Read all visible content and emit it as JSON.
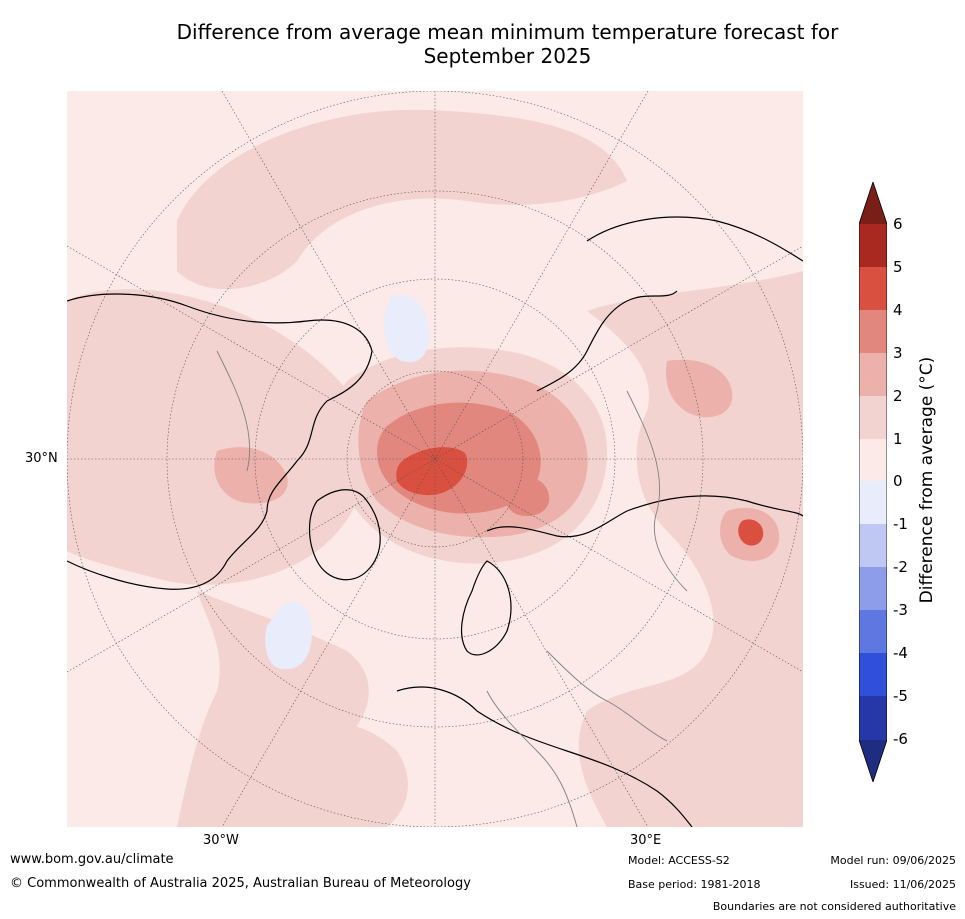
{
  "title": {
    "line1": "Difference from average mean minimum temperature forecast for",
    "line2": "September 2025"
  },
  "map": {
    "projection": "north-polar-stereographic",
    "lat_labels": [
      "30°N"
    ],
    "lon_labels": [
      "30°W",
      "30°E"
    ],
    "colors": {
      "plus_0_1": "#fbeae7",
      "plus_1_2": "#f3d3cf",
      "plus_2_3": "#ebb1aa",
      "plus_3_4": "#e2877d",
      "plus_4_5": "#d94f40",
      "plus_5_6": "#a9281f",
      "minus_0_1": "#e8ecfb",
      "coast": "#000000",
      "border": "#808080",
      "grid": "#555555"
    }
  },
  "colorbar": {
    "title": "Difference from average (°C)",
    "ticks": [
      "6",
      "5",
      "4",
      "3",
      "2",
      "1",
      "0",
      "-1",
      "-2",
      "-3",
      "-4",
      "-5",
      "-6"
    ],
    "colors": [
      "#7a1f18",
      "#a9281f",
      "#d94f40",
      "#e2877d",
      "#ebb1aa",
      "#f3d3cf",
      "#fbeae7",
      "#e8ecfb",
      "#bfc8f2",
      "#8d9de9",
      "#5e77e1",
      "#304fda",
      "#2638a8",
      "#1f2d80"
    ]
  },
  "footer": {
    "url": "www.bom.gov.au/climate",
    "copyright": "© Commonwealth of Australia 2025, Australian Bureau of Meteorology",
    "model": "Model: ACCESS-S2",
    "base_period": "Base period: 1981-2018",
    "model_run": "Model run: 09/06/2025",
    "issued": "Issued: 11/06/2025",
    "disclaimer": "Boundaries are not considered authoritative"
  }
}
